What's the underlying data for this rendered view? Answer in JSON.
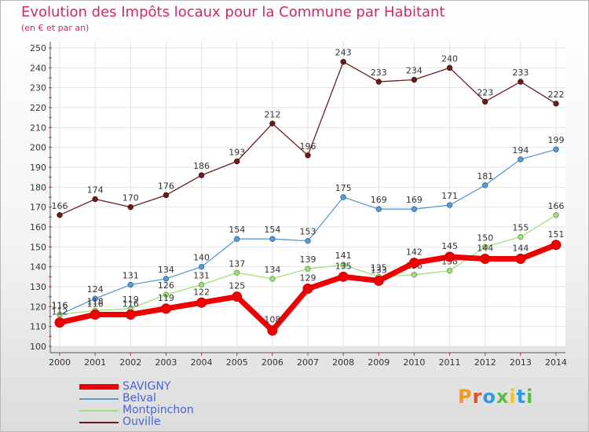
{
  "title": "Evolution des Impôts locaux pour la Commune par Habitant",
  "subtitle": "(en € et par an)",
  "logo": "Proxiti",
  "chart_data": {
    "type": "line",
    "x": [
      2000,
      2001,
      2002,
      2003,
      2004,
      2005,
      2006,
      2007,
      2008,
      2009,
      2010,
      2011,
      2012,
      2013,
      2014
    ],
    "ylim": [
      100,
      250
    ],
    "yticks": [
      100,
      110,
      120,
      130,
      140,
      150,
      160,
      170,
      180,
      190,
      200,
      210,
      220,
      230,
      240,
      250
    ],
    "grid": true,
    "legend_position": "bottom-left",
    "series": [
      {
        "name": "Ouville",
        "color": "#6b1c1c",
        "values": [
          166,
          174,
          170,
          176,
          186,
          193,
          212,
          196,
          243,
          233,
          234,
          240,
          223,
          233,
          222
        ]
      },
      {
        "name": "Belval",
        "color": "#5a9ad6",
        "values": [
          116,
          124,
          131,
          134,
          140,
          154,
          154,
          153,
          175,
          169,
          169,
          171,
          181,
          194,
          199
        ]
      },
      {
        "name": "Montpinchon",
        "color": "#9fe07a",
        "values": [
          116,
          118,
          119,
          126,
          131,
          137,
          134,
          139,
          141,
          135,
          136,
          138,
          150,
          155,
          166
        ]
      },
      {
        "name": "SAVIGNY",
        "color": "#ee0000",
        "values": [
          112,
          116,
          116,
          119,
          122,
          125,
          108,
          129,
          135,
          133,
          142,
          145,
          144,
          144,
          151
        ]
      }
    ]
  }
}
